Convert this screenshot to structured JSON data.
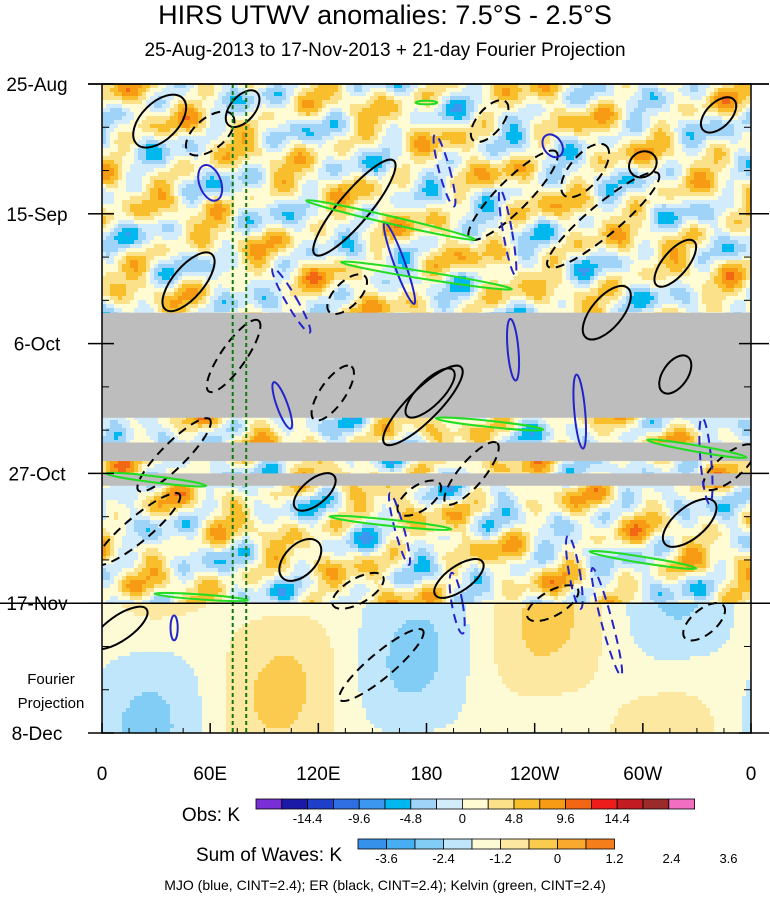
{
  "chart_data": {
    "type": "heatmap",
    "title": "HIRS UTWV anomalies: 7.5°S - 2.5°S",
    "subtitle": "25-Aug-2013 to 17-Nov-2013 + 21-day Fourier Projection",
    "x_ticks": [
      "0",
      "60E",
      "120E",
      "180",
      "120W",
      "60W",
      "0"
    ],
    "x_range": [
      0,
      360
    ],
    "y_ticks": [
      "25-Aug",
      "15-Sep",
      "6-Oct",
      "27-Oct",
      "17-Nov",
      "8-Dec"
    ],
    "y_range_days": [
      0,
      105
    ],
    "observation_end_day": 84,
    "projection_label_line1": "Fourier",
    "projection_label_line2": "Projection",
    "missing_data_bands_days": [
      [
        37,
        54
      ],
      [
        58,
        61
      ],
      [
        63,
        65
      ]
    ],
    "reference_lines_lon": [
      72.5,
      80
    ],
    "obs_colorbar": {
      "label": "Obs: K",
      "tick_labels": [
        "-14.4",
        "-9.6",
        "-4.8",
        "0",
        "4.8",
        "9.6",
        "14.4"
      ],
      "colors": [
        "#7a2fd6",
        "#1a1aa6",
        "#1e3fc7",
        "#2f6fe3",
        "#3c97f0",
        "#00b7ee",
        "#9fd3f7",
        "#d2ecfb",
        "#fffbd2",
        "#fbe28a",
        "#f8be2c",
        "#f69b13",
        "#f26714",
        "#ef1c1c",
        "#c21b22",
        "#9b2a2a",
        "#f06fc0"
      ]
    },
    "waves_colorbar": {
      "label": "Sum of Waves: K",
      "tick_labels": [
        "-3.6",
        "-2.4",
        "-1.2",
        "0",
        "1.2",
        "2.4",
        "3.6"
      ],
      "colors": [
        "#3591ea",
        "#47aff1",
        "#82cdf6",
        "#bfe6fa",
        "#fcfbd6",
        "#fce8a1",
        "#fbcb4f",
        "#f8a92e",
        "#f57e1b"
      ]
    },
    "contour_note": "MJO (blue, CINT=2.4); ER (black, CINT=2.4); Kelvin (green, CINT=2.4)",
    "wave_contours": {
      "mjo_color": "#2424cc",
      "er_color": "#000000",
      "kelvin_color": "#22dd22"
    },
    "grid": false
  }
}
